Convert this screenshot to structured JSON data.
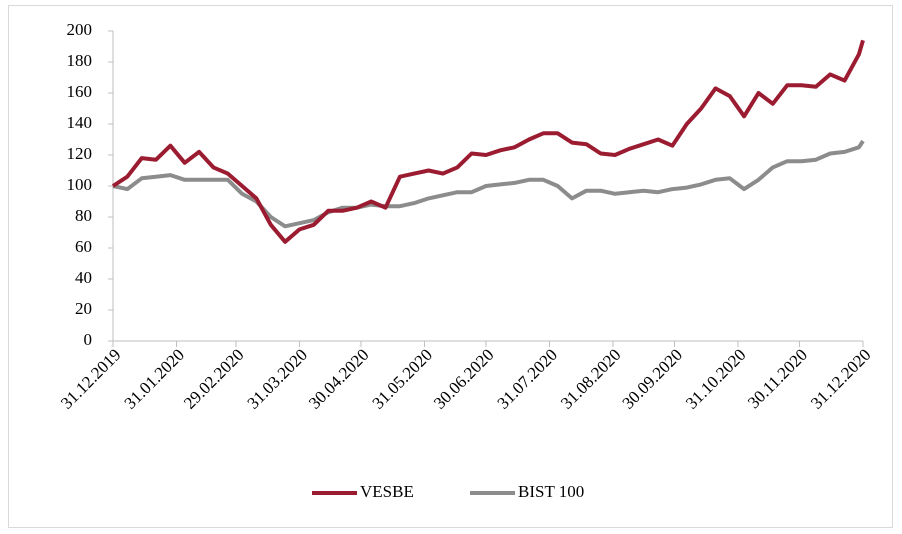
{
  "chart_data": {
    "type": "line",
    "x": [
      "31.12.2019",
      "07.01.2020",
      "14.01.2020",
      "21.01.2020",
      "28.01.2020",
      "04.02.2020",
      "11.02.2020",
      "18.02.2020",
      "25.02.2020",
      "03.03.2020",
      "10.03.2020",
      "17.03.2020",
      "24.03.2020",
      "31.03.2020",
      "07.04.2020",
      "14.04.2020",
      "21.04.2020",
      "28.04.2020",
      "05.05.2020",
      "12.05.2020",
      "19.05.2020",
      "26.05.2020",
      "02.06.2020",
      "09.06.2020",
      "16.06.2020",
      "23.06.2020",
      "30.06.2020",
      "07.07.2020",
      "14.07.2020",
      "21.07.2020",
      "28.07.2020",
      "04.08.2020",
      "11.08.2020",
      "18.08.2020",
      "25.08.2020",
      "01.09.2020",
      "08.09.2020",
      "15.09.2020",
      "22.09.2020",
      "29.09.2020",
      "06.10.2020",
      "13.10.2020",
      "20.10.2020",
      "27.10.2020",
      "03.11.2020",
      "10.11.2020",
      "17.11.2020",
      "24.11.2020",
      "01.12.2020",
      "08.12.2020",
      "15.12.2020",
      "22.12.2020",
      "29.12.2020",
      "31.12.2020"
    ],
    "series": [
      {
        "name": "VESBE",
        "color": "#9b1b30",
        "values": [
          100,
          106,
          118,
          117,
          126,
          115,
          122,
          112,
          108,
          100,
          92,
          75,
          64,
          72,
          75,
          84,
          84,
          86,
          90,
          86,
          106,
          108,
          110,
          108,
          112,
          121,
          120,
          123,
          125,
          130,
          134,
          134,
          128,
          127,
          121,
          120,
          124,
          127,
          130,
          126,
          140,
          150,
          163,
          158,
          145,
          160,
          153,
          165,
          165,
          164,
          172,
          168,
          185,
          194
        ]
      },
      {
        "name": "BIST 100",
        "color": "#8c8c8c",
        "values": [
          100,
          98,
          105,
          106,
          107,
          104,
          104,
          104,
          104,
          95,
          90,
          80,
          74,
          76,
          78,
          83,
          86,
          86,
          88,
          87,
          87,
          89,
          92,
          94,
          96,
          96,
          100,
          101,
          102,
          104,
          104,
          100,
          92,
          97,
          97,
          95,
          96,
          97,
          96,
          98,
          99,
          101,
          104,
          105,
          98,
          104,
          112,
          116,
          116,
          117,
          121,
          122,
          125,
          129
        ]
      }
    ],
    "xlim": [
      "31.12.2019",
      "31.12.2020"
    ],
    "xticks": [
      "31.12.2019",
      "31.01.2020",
      "29.02.2020",
      "31.03.2020",
      "30.04.2020",
      "31.05.2020",
      "30.06.2020",
      "31.07.2020",
      "31.08.2020",
      "30.09.2020",
      "31.10.2020",
      "30.11.2020",
      "31.12.2020"
    ],
    "ylim": [
      0,
      200
    ],
    "yticks": [
      0,
      20,
      40,
      60,
      80,
      100,
      120,
      140,
      160,
      180,
      200
    ],
    "legend": "bottom"
  }
}
